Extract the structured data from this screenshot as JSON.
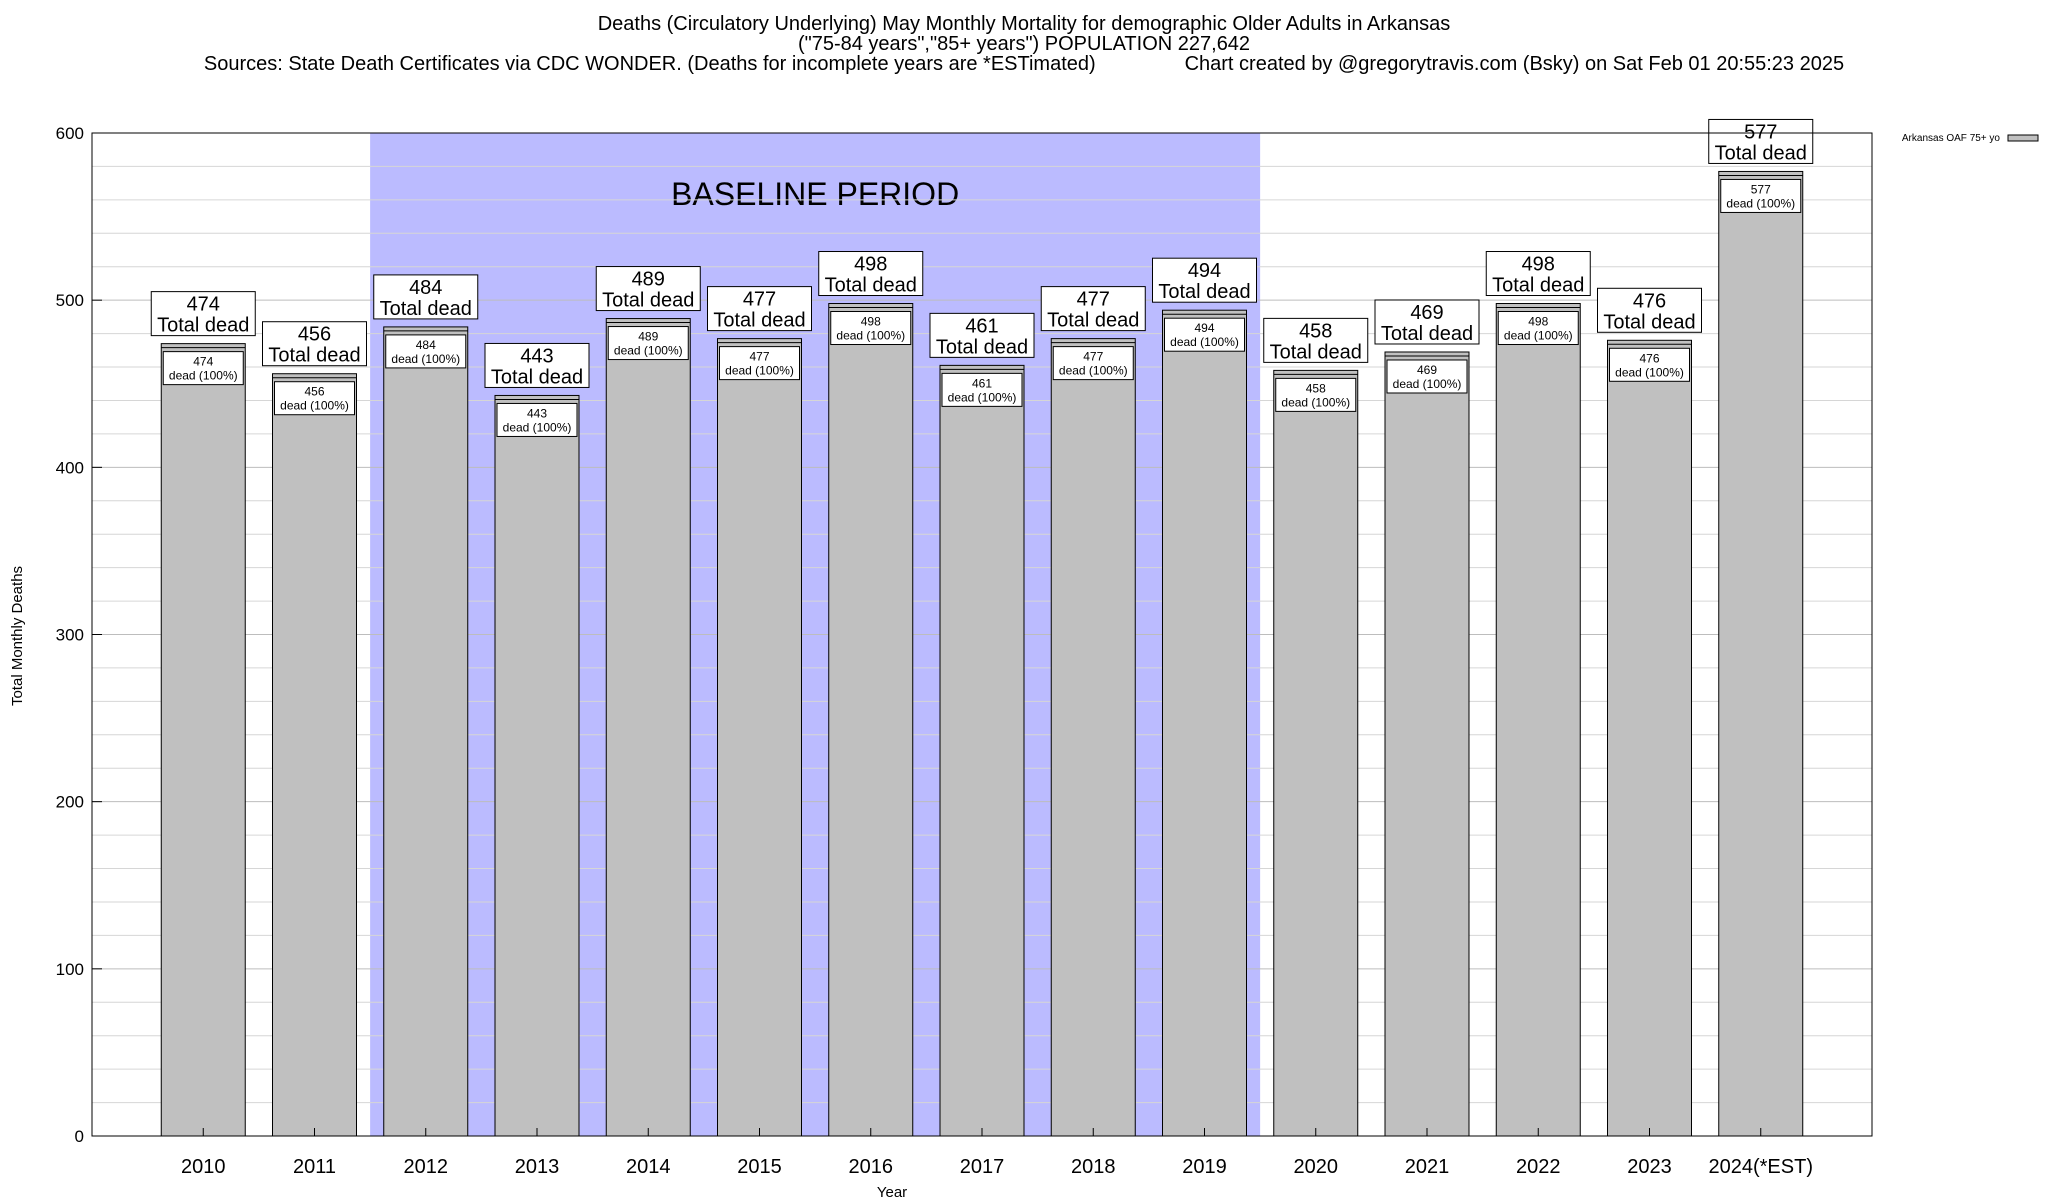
{
  "header": {
    "title_line1": "Deaths (Circulatory Underlying) May Monthly Mortality for demographic Older Adults in Arkansas",
    "title_line2": "(\"75-84 years\",\"85+ years\") POPULATION 227,642",
    "title_line3": "Sources: State Death Certificates via CDC WONDER. (Deaths for incomplete years are *ESTimated)                Chart created by @gregorytravis.com (Bsky) on Sat Feb 01 20:55:23 2025"
  },
  "chart_data": {
    "type": "bar",
    "xlabel": "Year",
    "ylabel": "Total Monthly Deaths",
    "ylim": [
      0,
      600
    ],
    "yticks": [
      0,
      100,
      200,
      300,
      400,
      500,
      600
    ],
    "categories": [
      "2010",
      "2011",
      "2012",
      "2013",
      "2014",
      "2015",
      "2016",
      "2017",
      "2018",
      "2019",
      "2020",
      "2021",
      "2022",
      "2023",
      "2024(*EST)"
    ],
    "series": [
      {
        "name": "Arkansas OAF 75+ yo",
        "values": [
          474,
          456,
          484,
          443,
          489,
          477,
          498,
          461,
          477,
          494,
          458,
          469,
          498,
          476,
          577
        ],
        "color": "#c0c0c0"
      }
    ],
    "top_label_suffix": "Total dead",
    "inner_label_suffix": "dead (100%)",
    "baseline": {
      "label": "BASELINE PERIOD",
      "start": "2012",
      "end": "2019",
      "color": "#bbbbff"
    },
    "grid": true,
    "legend": "top-right"
  }
}
